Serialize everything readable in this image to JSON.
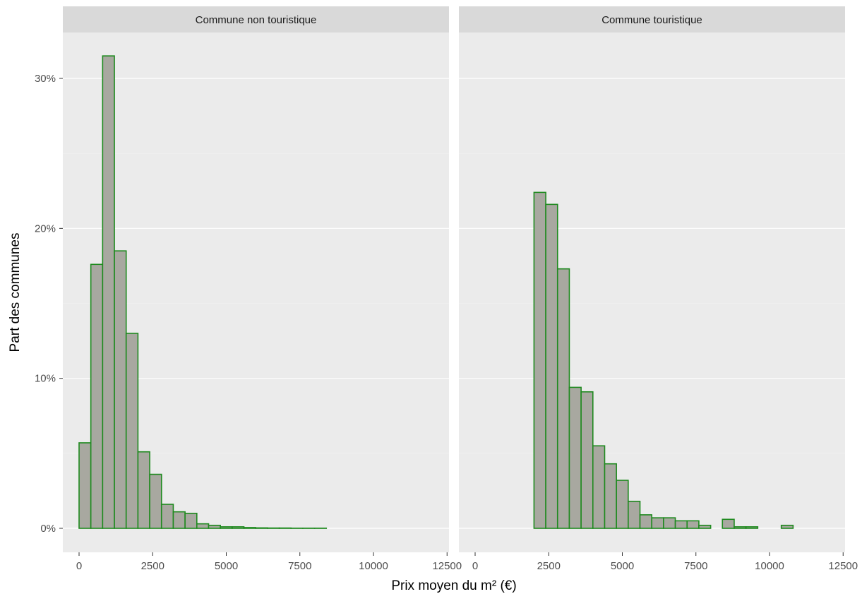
{
  "chart_data": {
    "type": "bar",
    "xlabel": "Prix moyen du m² (€)",
    "ylabel": "Part des communes",
    "ylim": [
      0,
      0.33
    ],
    "xlim": [
      -625,
      12500
    ],
    "x_ticks": [
      0,
      2500,
      5000,
      7500,
      10000,
      12500
    ],
    "x_tick_labels": [
      "0",
      "2500",
      "5000",
      "7500",
      "10000",
      "12500"
    ],
    "y_ticks": [
      0,
      0.1,
      0.2,
      0.3
    ],
    "y_tick_labels": [
      "0%",
      "10%",
      "20%",
      "30%"
    ],
    "bin_width": 400,
    "grid": true,
    "fill_color": "#a8a8a0",
    "outline_color": "#1f8a1f",
    "panel_background": "#ebebeb",
    "strip_background": "#d9d9d9",
    "panels": [
      {
        "title": "Commune non touristique",
        "bin_starts": [
          0,
          400,
          800,
          1200,
          1600,
          2000,
          2400,
          2800,
          3200,
          3600,
          4000,
          4400,
          4800,
          5200,
          5600,
          6000,
          6400,
          6800,
          7200,
          7600,
          8000,
          8400,
          8800,
          9200,
          9600,
          10000,
          10400,
          10800,
          11200,
          11600
        ],
        "values": [
          0.057,
          0.176,
          0.315,
          0.185,
          0.13,
          0.051,
          0.036,
          0.016,
          0.011,
          0.01,
          0.003,
          0.002,
          0.001,
          0.001,
          0.0005,
          0.0003,
          0.0002,
          0.0002,
          0.0001,
          0.0001,
          0.0001,
          0,
          0,
          0,
          0,
          0,
          0,
          0,
          0,
          0
        ]
      },
      {
        "title": "Commune touristique",
        "bin_starts": [
          0,
          400,
          800,
          1200,
          1600,
          2000,
          2400,
          2800,
          3200,
          3600,
          4000,
          4400,
          4800,
          5200,
          5600,
          6000,
          6400,
          6800,
          7200,
          7600,
          8000,
          8400,
          8800,
          9200,
          9600,
          10000,
          10400,
          10800,
          11200,
          11600
        ],
        "values": [
          0,
          0,
          0,
          0,
          0,
          0.224,
          0.216,
          0.173,
          0.094,
          0.091,
          0.055,
          0.043,
          0.032,
          0.018,
          0.009,
          0.007,
          0.007,
          0.005,
          0.005,
          0.002,
          0,
          0.006,
          0.001,
          0.001,
          0,
          0,
          0.002,
          0,
          0,
          0
        ]
      }
    ]
  }
}
